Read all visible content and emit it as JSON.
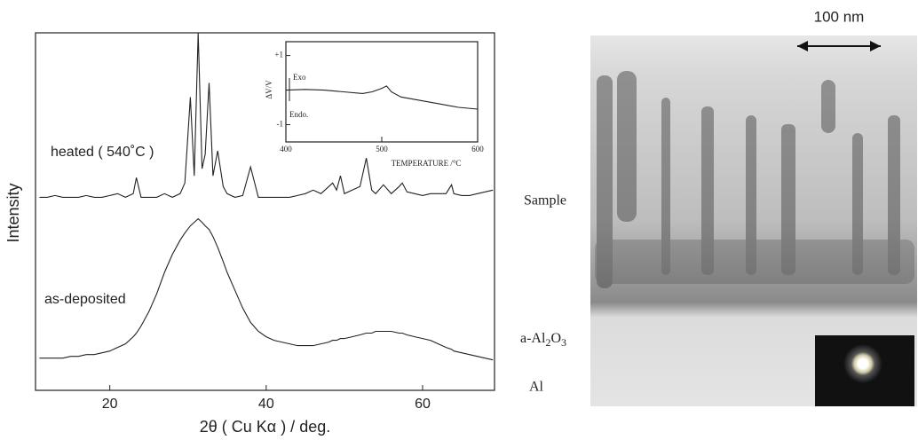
{
  "chart_data": [
    {
      "type": "line",
      "x_label": "2θ ( Cu Kα ) / deg.",
      "y_label": "Intensity",
      "xlim": [
        10.5,
        69.2
      ],
      "xticks": [
        20,
        40,
        60
      ],
      "ylim": [
        0,
        100
      ],
      "x": [
        11,
        12,
        13,
        14,
        15,
        16,
        17,
        18,
        19,
        20,
        21,
        22,
        23,
        23.4,
        24,
        25,
        26,
        27,
        28,
        29,
        29.6,
        30.3,
        30.8,
        31.3,
        31.8,
        32.2,
        32.7,
        33.2,
        33.8,
        34.5,
        35,
        36,
        37,
        38,
        39,
        40,
        41,
        42,
        43,
        44,
        45,
        46,
        47,
        48,
        48.5,
        49,
        49.5,
        50,
        51,
        52,
        52.8,
        53.5,
        54,
        55,
        56,
        57,
        57.4,
        58,
        59,
        60,
        61,
        62,
        63,
        63.7,
        64,
        65,
        66,
        67,
        68,
        69
      ],
      "series": [
        {
          "name": "heated ( 540˚C )",
          "color": "#222222",
          "values": [
            54,
            54,
            54.5,
            54,
            54,
            54,
            54.5,
            54,
            54,
            54.5,
            55,
            54,
            55,
            59.5,
            54,
            54,
            54,
            55,
            54,
            55,
            58,
            82,
            60,
            100,
            62,
            66,
            86,
            60,
            67,
            57,
            55,
            54,
            54.5,
            62.5,
            54,
            54,
            54,
            54,
            54,
            54.5,
            55,
            56,
            55,
            57,
            58,
            56,
            60,
            55,
            56,
            57,
            65,
            56,
            55,
            57.5,
            55,
            57,
            58,
            55.5,
            55,
            54.5,
            55,
            55,
            55,
            57.5,
            55,
            54.5,
            54.5,
            55,
            55.5,
            56
          ]
        },
        {
          "name": "as-deposited",
          "color": "#222222",
          "values": [
            9,
            9,
            9,
            9,
            9.5,
            9.5,
            10,
            10,
            10.5,
            11,
            12,
            13,
            15,
            16,
            18,
            22,
            27,
            33,
            38,
            42,
            44,
            46,
            47,
            48,
            47,
            46,
            45,
            43,
            40,
            36,
            33,
            28,
            23,
            19,
            16.5,
            15,
            14,
            13.5,
            13,
            12.5,
            12.5,
            12.5,
            13,
            13.5,
            14,
            14,
            14.5,
            14.5,
            15,
            15.5,
            16,
            16,
            16.5,
            16.5,
            16.5,
            16,
            16,
            15.5,
            15,
            14.5,
            14,
            13,
            12,
            11.5,
            11,
            10.5,
            10,
            9.5,
            9,
            8.5
          ]
        }
      ]
    },
    {
      "type": "line",
      "x_label": "TEMPERATURE /°C",
      "y_label": "ΔV/V",
      "annotations": [
        "Exo",
        "Endo."
      ],
      "xlim": [
        400,
        600
      ],
      "xticks": [
        400,
        500,
        600
      ],
      "ylim": [
        -1.5,
        1.4
      ],
      "yticks": [
        {
          "value": 1,
          "label": "+1"
        },
        -1
      ],
      "x": [
        400,
        420,
        440,
        460,
        480,
        490,
        500,
        505,
        510,
        520,
        540,
        560,
        580,
        600
      ],
      "color": "#222222",
      "values": [
        0,
        0.02,
        0,
        -0.05,
        -0.1,
        -0.05,
        0.05,
        0.12,
        -0.05,
        -0.2,
        -0.3,
        -0.4,
        -0.5,
        -0.55
      ]
    }
  ],
  "micrograph": {
    "scale_bar": "100 nm",
    "labels": [
      "Sample",
      "a-Al",
      "2",
      "O",
      "3",
      "Al"
    ]
  }
}
